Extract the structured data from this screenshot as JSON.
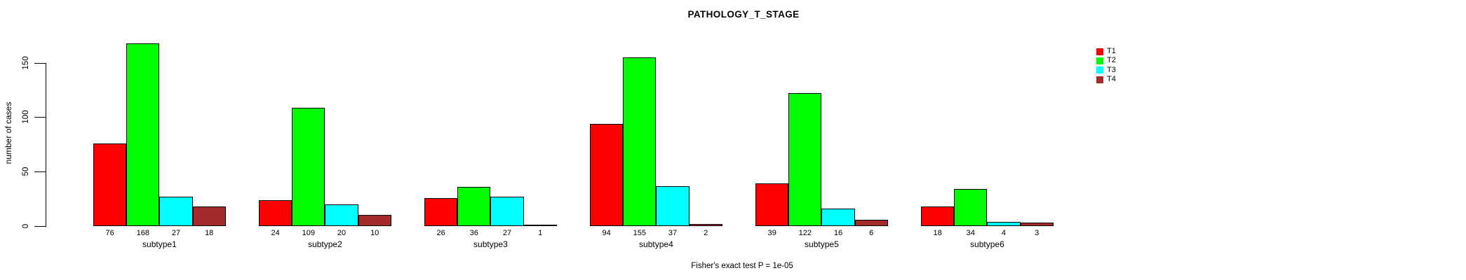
{
  "chart_data": {
    "type": "bar",
    "title": "PATHOLOGY_T_STAGE",
    "ylabel": "number of cases",
    "xlabel": "",
    "annotation": "Fisher's exact test P = 1e-05",
    "categories": [
      "subtype1",
      "subtype2",
      "subtype3",
      "subtype4",
      "subtype5",
      "subtype6"
    ],
    "series": [
      {
        "name": "T1",
        "color": "#ff0000",
        "values": [
          76,
          24,
          26,
          94,
          39,
          18
        ]
      },
      {
        "name": "T2",
        "color": "#00ff00",
        "values": [
          168,
          109,
          36,
          155,
          122,
          34
        ]
      },
      {
        "name": "T3",
        "color": "#00ffff",
        "values": [
          27,
          20,
          27,
          37,
          16,
          4
        ]
      },
      {
        "name": "T4",
        "color": "#a52a2a",
        "values": [
          18,
          10,
          1,
          2,
          6,
          3
        ]
      }
    ],
    "bar_value_labels": [
      [
        76,
        168,
        27,
        18
      ],
      [
        24,
        109,
        20,
        10
      ],
      [
        26,
        36,
        27,
        1
      ],
      [
        94,
        155,
        37,
        2
      ],
      [
        39,
        122,
        16,
        6
      ],
      [
        18,
        34,
        4,
        3
      ]
    ],
    "yticks": [
      0,
      50,
      100,
      150
    ],
    "ylim": [
      0,
      168
    ],
    "grid": false,
    "legend_position": "right",
    "background": "#ffffff",
    "axis_color": "#000000"
  }
}
